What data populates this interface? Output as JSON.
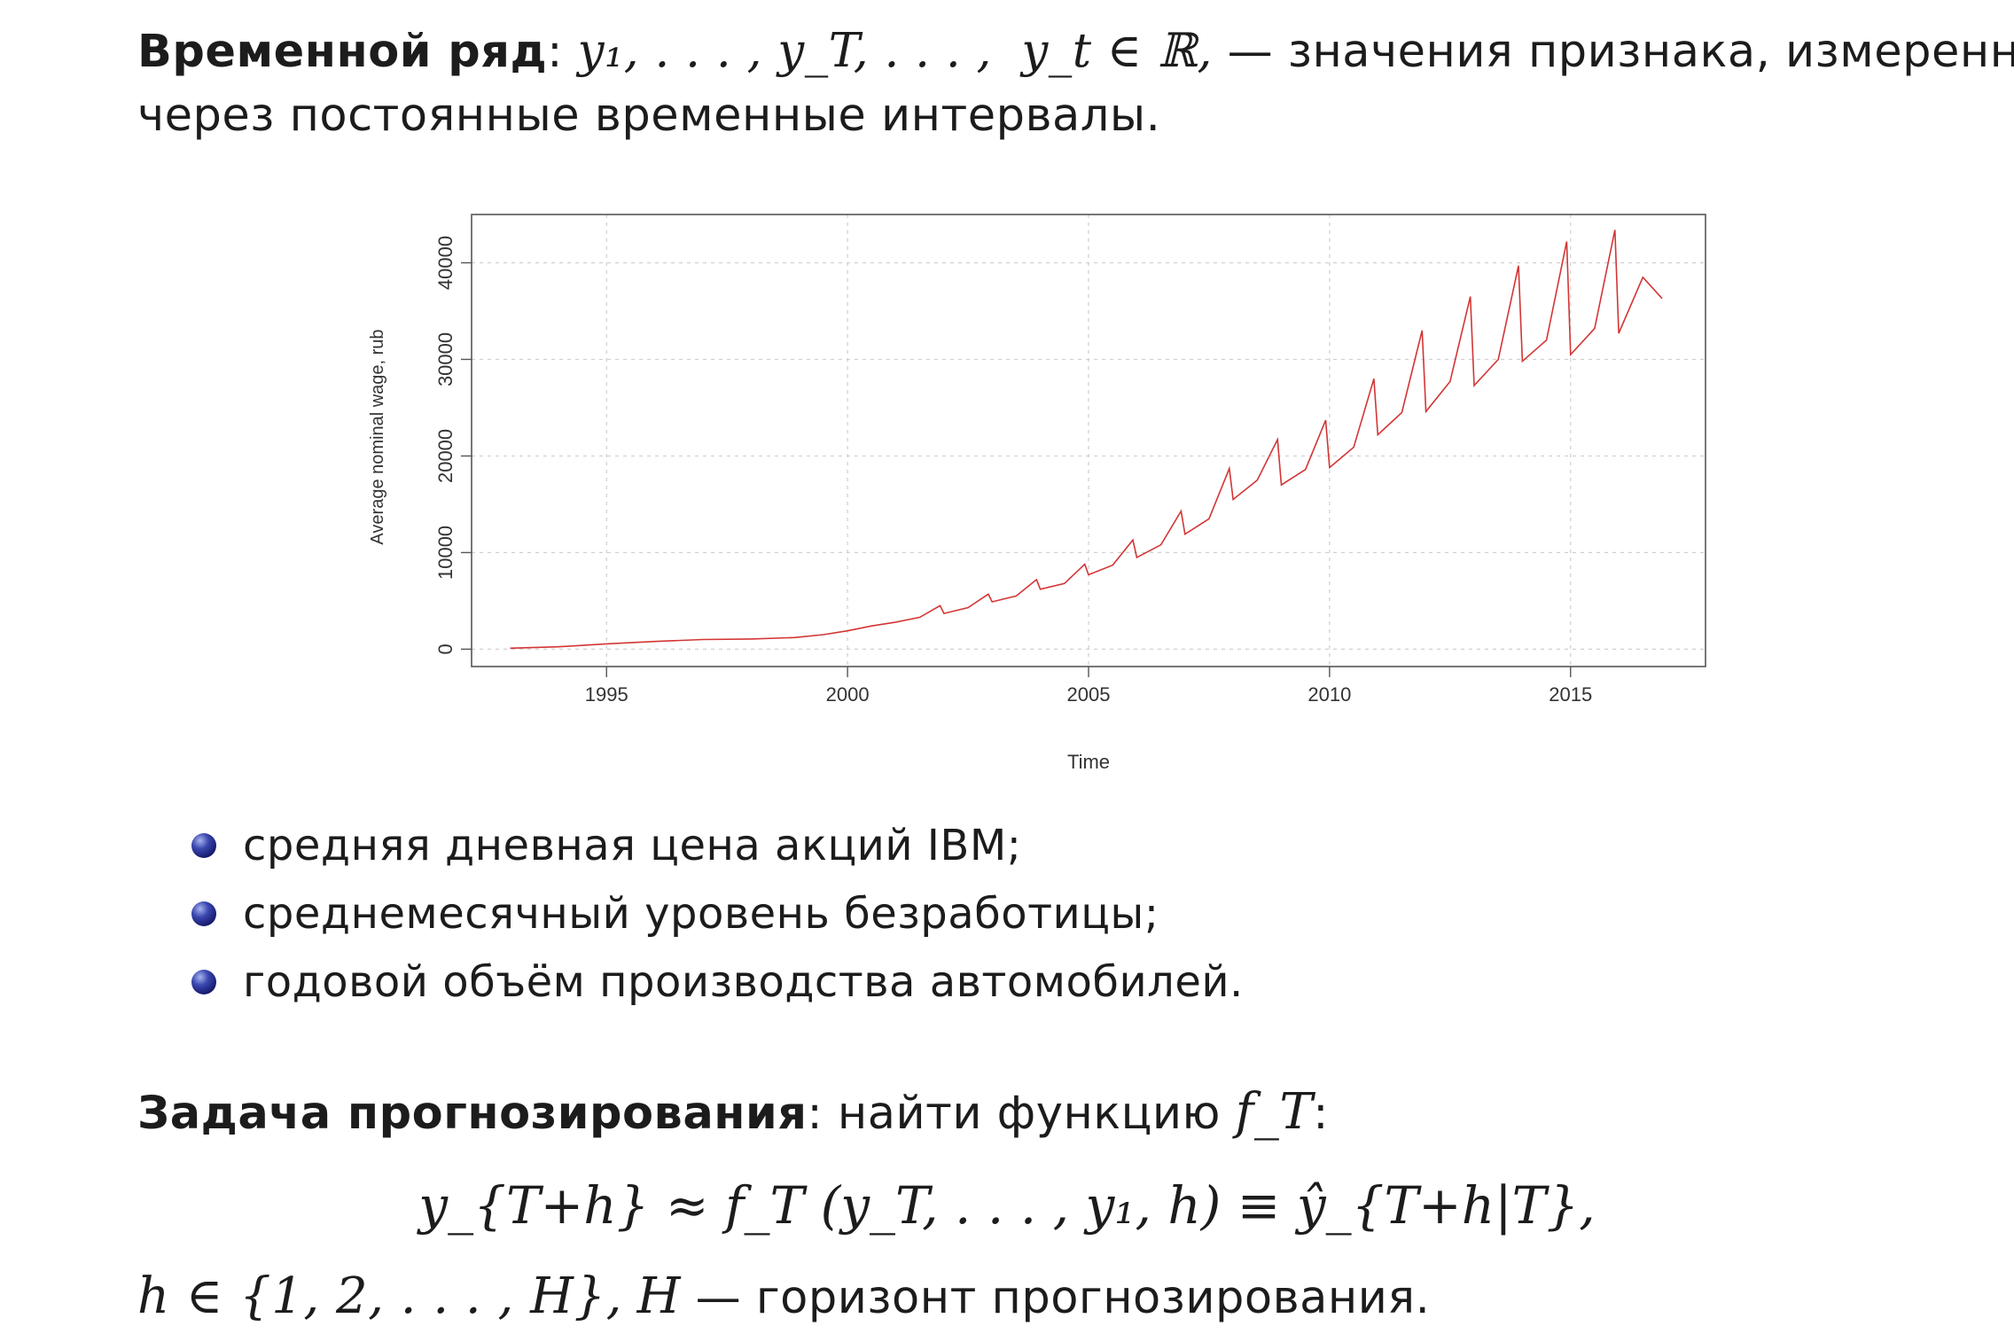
{
  "definition": {
    "term": "Временной ряд",
    "colon": ":",
    "sequence": "y₁, . . . , y_T, . . . ,",
    "membership": "y_t ∈ ℝ,",
    "description_line1": "— значения признака, измеренные",
    "description_line2": "через постоянные временные интервалы."
  },
  "chart_data": {
    "type": "line",
    "xlabel": "Time",
    "ylabel": "Average nominal wage, rub",
    "xlim": [
      1992.2,
      2017.8
    ],
    "ylim": [
      -1800,
      45000
    ],
    "x_ticks": [
      1995,
      2000,
      2005,
      2010,
      2015
    ],
    "y_ticks": [
      0,
      10000,
      20000,
      30000,
      40000
    ],
    "grid": true,
    "series": [
      {
        "color": "#d33535",
        "x": [
          1993.0,
          1994.0,
          1995.0,
          1996.0,
          1997.0,
          1998.0,
          1998.9,
          1999.5,
          2000.0,
          2000.5,
          2001.0,
          2001.5,
          2001.92,
          2002.0,
          2002.5,
          2002.92,
          2003.0,
          2003.5,
          2003.92,
          2004.0,
          2004.5,
          2004.92,
          2005.0,
          2005.5,
          2005.92,
          2006.0,
          2006.5,
          2006.92,
          2007.0,
          2007.5,
          2007.92,
          2008.0,
          2008.5,
          2008.92,
          2009.0,
          2009.5,
          2009.92,
          2010.0,
          2010.5,
          2010.92,
          2011.0,
          2011.5,
          2011.92,
          2012.0,
          2012.5,
          2012.92,
          2013.0,
          2013.5,
          2013.92,
          2014.0,
          2014.5,
          2014.92,
          2015.0,
          2015.5,
          2015.92,
          2016.0,
          2016.5,
          2016.9
        ],
        "values": [
          100,
          250,
          550,
          800,
          1000,
          1050,
          1200,
          1500,
          1900,
          2400,
          2800,
          3300,
          4500,
          3700,
          4300,
          5700,
          4900,
          5500,
          7200,
          6200,
          6800,
          8800,
          7700,
          8700,
          11300,
          9500,
          10800,
          14300,
          11900,
          13500,
          18700,
          15500,
          17500,
          21700,
          17000,
          18600,
          23700,
          18800,
          20900,
          28000,
          22200,
          24500,
          33000,
          24600,
          27700,
          36500,
          27300,
          30000,
          39700,
          29800,
          32000,
          42200,
          30500,
          33200,
          43400,
          32700,
          38500,
          36300
        ]
      }
    ]
  },
  "examples": [
    "средняя дневная цена акций IBM;",
    "среднемесячный уровень безработицы;",
    "годовой объём производства автомобилей."
  ],
  "task": {
    "term": "Задача прогнозирования",
    "text": ": найти функцию",
    "func": "f_T",
    "colon": ":"
  },
  "formula": {
    "lhs": "y_{T+h} ≈ f_T (y_T, . . . , y₁, h) ≡ ŷ_{T+h|T},"
  },
  "horizon": {
    "set": "h ∈ {1, 2, . . . , H},",
    "H": "H",
    "text": "— горизонт прогнозирования."
  }
}
